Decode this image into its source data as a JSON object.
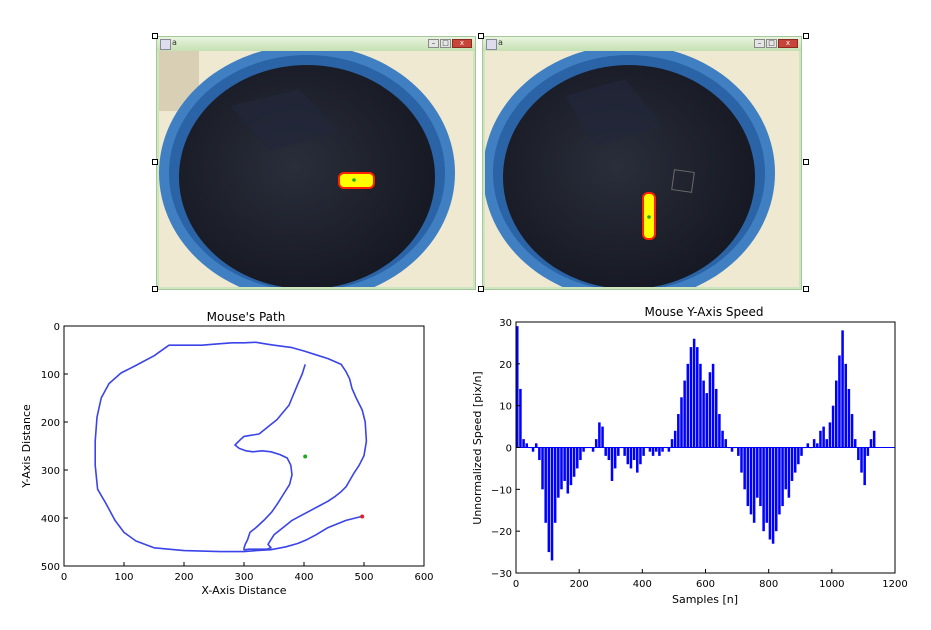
{
  "windows": [
    {
      "title": "a",
      "min_glyph": "–",
      "max_glyph": "□",
      "close_glyph": "x"
    },
    {
      "title": "a",
      "min_glyph": "–",
      "max_glyph": "□",
      "close_glyph": "x"
    }
  ],
  "colors": {
    "path_line": "#3a44e8",
    "speed_bars": "#0000ff",
    "start_marker": "#22aa22",
    "end_marker": "#e22222",
    "blob_fill": "#ffff00",
    "blob_outline": "#ff2200",
    "window_frame": "#cde6c0",
    "close_button": "#c8453a"
  },
  "chart_data": [
    {
      "type": "line",
      "title": "Mouse's Path",
      "xlabel": "X-Axis Distance",
      "ylabel": "Y-Axis Distance",
      "xlim": [
        0,
        600
      ],
      "ylim": [
        500,
        0
      ],
      "y_inverted": true,
      "grid": false,
      "xticks": [
        "0",
        "100",
        "200",
        "300",
        "400",
        "500",
        "600"
      ],
      "yticks": [
        "0",
        "100",
        "200",
        "300",
        "400",
        "500"
      ],
      "series": [
        {
          "x": [
            495,
            470,
            440,
            420,
            405,
            390,
            370,
            345,
            320,
            300,
            260,
            200,
            150,
            120,
            100,
            85,
            70,
            56,
            52,
            52,
            55,
            62,
            75,
            95,
            120,
            150,
            175,
            230,
            250,
            280,
            300,
            320,
            335,
            350,
            380,
            400,
            420,
            440,
            462,
            470,
            476,
            480,
            487,
            497,
            502,
            504,
            500,
            492,
            484,
            477,
            470,
            462,
            452,
            440,
            425,
            410,
            395,
            380,
            370,
            360,
            350,
            345,
            340,
            345,
            338,
            330,
            320,
            308,
            302,
            300,
            300,
            302,
            306,
            310,
            320,
            333,
            346,
            356,
            366,
            376,
            380,
            378,
            372,
            360,
            345,
            330,
            315,
            303,
            292,
            285,
            293,
            300,
            310,
            325,
            335,
            345,
            355,
            365,
            375,
            380,
            385,
            390,
            397,
            402
          ],
          "y": [
            397,
            405,
            420,
            435,
            445,
            453,
            460,
            466,
            468,
            470,
            470,
            468,
            462,
            448,
            430,
            405,
            370,
            340,
            290,
            240,
            190,
            150,
            120,
            98,
            82,
            62,
            40,
            40,
            38,
            35,
            35,
            34,
            37,
            40,
            45,
            52,
            60,
            68,
            80,
            95,
            110,
            130,
            150,
            175,
            200,
            240,
            270,
            290,
            305,
            320,
            335,
            345,
            355,
            365,
            375,
            385,
            395,
            405,
            415,
            425,
            435,
            445,
            455,
            462,
            465,
            465,
            465,
            465,
            466,
            466,
            463,
            455,
            445,
            430,
            420,
            405,
            388,
            370,
            350,
            330,
            310,
            290,
            275,
            268,
            262,
            260,
            262,
            260,
            255,
            248,
            238,
            230,
            228,
            225,
            215,
            205,
            195,
            180,
            165,
            150,
            135,
            120,
            100,
            80
          ]
        }
      ],
      "markers": [
        {
          "name": "start",
          "x": 402,
          "y": 272,
          "color": "#22aa22"
        },
        {
          "name": "end",
          "x": 497,
          "y": 397,
          "color": "#e22222"
        }
      ]
    },
    {
      "type": "bar",
      "title": "Mouse Y-Axis Speed",
      "xlabel": "Samples [n]",
      "ylabel": "Unnormalized Speed [pix/n]",
      "xlim": [
        0,
        1200
      ],
      "ylim": [
        -30,
        30
      ],
      "grid": false,
      "xticks": [
        "0",
        "200",
        "400",
        "600",
        "800",
        "1000",
        "1200"
      ],
      "yticks": [
        "30",
        "20",
        "10",
        "0",
        "−10",
        "−20",
        "−30"
      ],
      "x": [
        0,
        10,
        20,
        30,
        40,
        50,
        60,
        70,
        80,
        90,
        100,
        110,
        120,
        130,
        140,
        150,
        160,
        170,
        180,
        190,
        200,
        210,
        220,
        230,
        240,
        250,
        260,
        270,
        280,
        290,
        300,
        310,
        320,
        330,
        340,
        350,
        360,
        370,
        380,
        390,
        400,
        410,
        420,
        430,
        440,
        450,
        460,
        470,
        480,
        490,
        500,
        510,
        520,
        530,
        540,
        550,
        560,
        570,
        580,
        590,
        600,
        610,
        620,
        630,
        640,
        650,
        660,
        670,
        680,
        690,
        700,
        710,
        720,
        730,
        740,
        750,
        760,
        770,
        780,
        790,
        800,
        810,
        820,
        830,
        840,
        850,
        860,
        870,
        880,
        890,
        900,
        910,
        920,
        930,
        940,
        950,
        960,
        970,
        980,
        990,
        1000,
        1010,
        1020,
        1030,
        1040,
        1050,
        1060,
        1070,
        1080,
        1090,
        1100,
        1110,
        1120,
        1130
      ],
      "values": [
        29,
        14,
        2,
        1,
        0,
        -1,
        1,
        -3,
        -10,
        -18,
        -25,
        -27,
        -18,
        -12,
        -10,
        -8,
        -11,
        -9,
        -7,
        -5,
        -3,
        -1,
        0,
        0,
        -1,
        2,
        6,
        5,
        -2,
        -3,
        -8,
        -5,
        -2,
        0,
        -2,
        -4,
        -5,
        -3,
        -6,
        -4,
        -2,
        0,
        -1,
        -2,
        -1,
        -2,
        -1,
        0,
        -1,
        2,
        4,
        8,
        12,
        16,
        20,
        24,
        26,
        24,
        20,
        16,
        13,
        18,
        20,
        14,
        8,
        4,
        2,
        0,
        -1,
        0,
        -2,
        -6,
        -10,
        -14,
        -16,
        -18,
        -12,
        -14,
        -20,
        -18,
        -22,
        -23,
        -20,
        -16,
        -14,
        -10,
        -12,
        -8,
        -6,
        -4,
        -2,
        0,
        1,
        0,
        2,
        1,
        4,
        5,
        2,
        6,
        10,
        16,
        22,
        28,
        20,
        14,
        8,
        2,
        -3,
        -6,
        -9,
        -2,
        2,
        4
      ]
    }
  ]
}
